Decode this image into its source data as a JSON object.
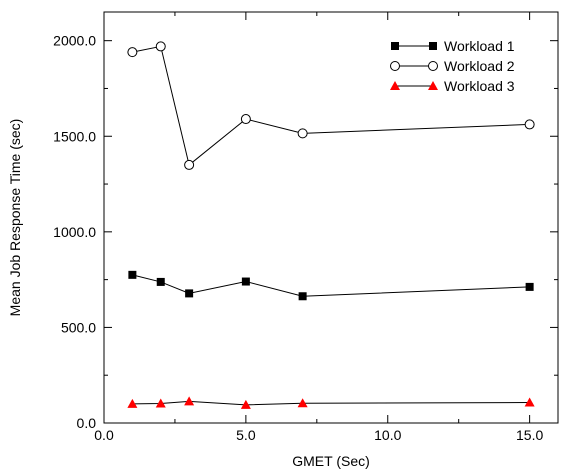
{
  "chart_data": {
    "type": "line",
    "title": "",
    "xlabel": "GMET (Sec)",
    "ylabel": "Mean Job Response Time (sec)",
    "xlim": [
      0,
      16
    ],
    "ylim": [
      0,
      2150
    ],
    "x_ticks": [
      0,
      5,
      10,
      15
    ],
    "x_tick_labels": [
      "0.0",
      "5.0",
      "10.0",
      "15.0"
    ],
    "y_ticks": [
      0,
      500,
      1000,
      1500,
      2000
    ],
    "y_tick_labels": [
      "0.0",
      "500.0",
      "1000.0",
      "1500.0",
      "2000.0"
    ],
    "grid": false,
    "legend_position": "top-right",
    "x": [
      1,
      2,
      3,
      5,
      7,
      15
    ],
    "series": [
      {
        "name": "Workload 1",
        "marker": "filled-square",
        "color": "#000000",
        "values": [
          775,
          738,
          678,
          740,
          663,
          712
        ]
      },
      {
        "name": "Workload 2",
        "marker": "open-circle",
        "color": "#000000",
        "values": [
          1940,
          1970,
          1350,
          1590,
          1515,
          1562
        ]
      },
      {
        "name": "Workload 3",
        "marker": "filled-triangle",
        "color": "#ff0000",
        "values": [
          100,
          102,
          113,
          95,
          103,
          107
        ]
      }
    ]
  }
}
